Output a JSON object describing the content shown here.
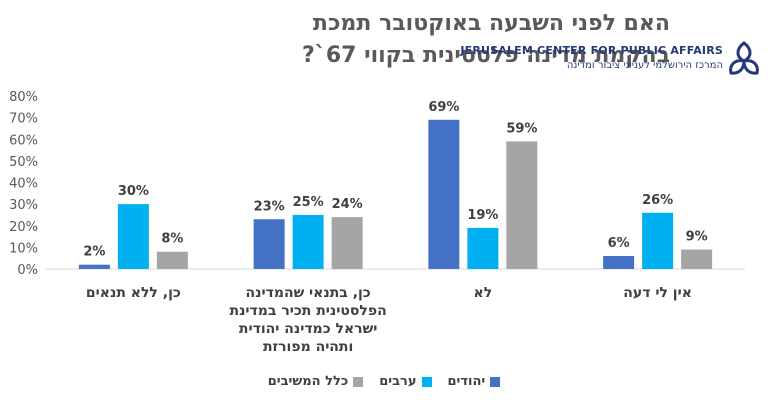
{
  "title": "האם לפני השבעה באוקטובר תמכת בהקמת מדינה פלסטינית בקווי 67`?",
  "logo": {
    "text_en": "JERUSALEM CENTER FOR PUBLIC AFFAIRS",
    "text_he": "המרכז הירושלמי לענייני ציבור ומדינה",
    "color": "#23397a"
  },
  "chart_data": {
    "type": "bar",
    "categories": [
      "כן, ללא תנאים",
      "כן, בתנאי שהמדינה הפלסטינית תכיר במדינת ישראל כמדינה יהודית ותהיה מפורזת",
      "לא",
      "אין לי דעה"
    ],
    "category_lines": [
      [
        "כן, ללא תנאים"
      ],
      [
        "כן, בתנאי שהמדינה",
        "הפלסטינית תכיר במדינת",
        "ישראל כמדינה יהודית",
        "ותהיה מפורזת"
      ],
      [
        "לא"
      ],
      [
        "אין לי דעה"
      ]
    ],
    "series": [
      {
        "name": "יהודים",
        "values": [
          2,
          23,
          69,
          6
        ],
        "labels": [
          "2%",
          "23%",
          "69%",
          "6%"
        ],
        "color": "#4472c4"
      },
      {
        "name": "ערבים",
        "values": [
          30,
          25,
          19,
          26
        ],
        "labels": [
          "30%",
          "25%",
          "19%",
          "26%"
        ],
        "color": "#00b0f0"
      },
      {
        "name": "כלל המשיבים",
        "values": [
          8,
          24,
          59,
          9
        ],
        "labels": [
          "8%",
          "24%",
          "59%",
          "9%"
        ],
        "color": "#a5a5a5"
      }
    ],
    "ylim": [
      0,
      80
    ],
    "yticks": [
      "0%",
      "10%",
      "20%",
      "30%",
      "40%",
      "50%",
      "60%",
      "70%",
      "80%"
    ],
    "grid": false,
    "legend_position": "bottom"
  }
}
